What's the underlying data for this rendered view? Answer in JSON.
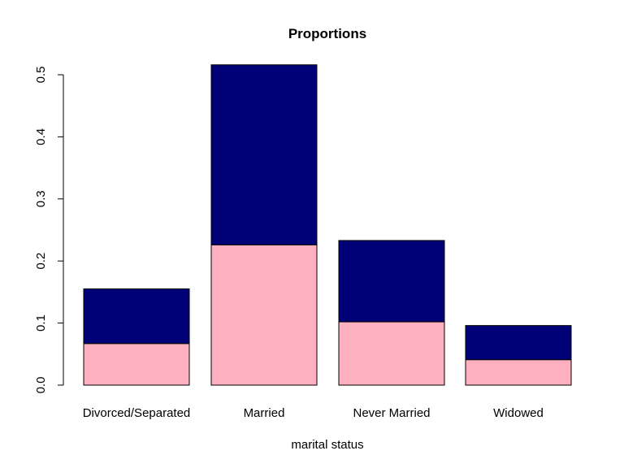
{
  "chart_data": {
    "type": "bar",
    "stacked": true,
    "title": "Proportions",
    "xlabel": "marital status",
    "ylabel": "",
    "ylim": [
      0,
      0.5
    ],
    "yticks": [
      0.0,
      0.1,
      0.2,
      0.3,
      0.4,
      0.5
    ],
    "ytick_labels": [
      "0.0",
      "0.1",
      "0.2",
      "0.3",
      "0.4",
      "0.5"
    ],
    "categories": [
      "Divorced/Separated",
      "Married",
      "Never Married",
      "Widowed"
    ],
    "grid": false,
    "series": [
      {
        "color": "#ffb0c0",
        "values": [
          0.067,
          0.226,
          0.102,
          0.041
        ]
      },
      {
        "color": "#000077",
        "values": [
          0.088,
          0.29,
          0.131,
          0.055
        ]
      }
    ]
  }
}
